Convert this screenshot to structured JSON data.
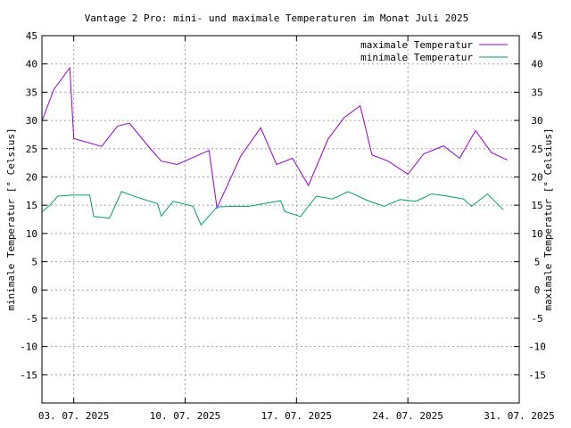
{
  "chart_data": {
    "type": "line",
    "title": "Vantage 2 Pro: mini- und maximale Temperaturen im Monat Juli 2025",
    "ylabel_left": "minimale Temperatur [° Celsius]",
    "ylabel_right": "maximale Temperatur [° Celsius]",
    "xlabel": "",
    "x_range": [
      "2025-07-01",
      "2025-07-31"
    ],
    "ylim": [
      -20,
      45
    ],
    "y_ticks": [
      -15,
      -10,
      -5,
      0,
      5,
      10,
      15,
      20,
      25,
      30,
      35,
      40,
      45
    ],
    "x_ticks": [
      {
        "date": "2025-07-03",
        "label": "03. 07. 2025"
      },
      {
        "date": "2025-07-10",
        "label": "10. 07. 2025"
      },
      {
        "date": "2025-07-17",
        "label": "17. 07. 2025"
      },
      {
        "date": "2025-07-24",
        "label": "24. 07. 2025"
      },
      {
        "date": "2025-07-31",
        "label": "31. 07. 2025"
      }
    ],
    "grid": true,
    "legend_position": "top-right",
    "series": [
      {
        "name": "maximale Temperatur",
        "color": "#9400d3",
        "points": [
          [
            "2025-07-01 00:00",
            29.9
          ],
          [
            "2025-07-01 18:00",
            35.5
          ],
          [
            "2025-07-02 18:00",
            39.3
          ],
          [
            "2025-07-03 00:00",
            26.8
          ],
          [
            "2025-07-04 18:00",
            25.4
          ],
          [
            "2025-07-05 18:00",
            29.0
          ],
          [
            "2025-07-06 12:00",
            29.5
          ],
          [
            "2025-07-07 18:00",
            25.2
          ],
          [
            "2025-07-08 12:00",
            22.8
          ],
          [
            "2025-07-09 12:00",
            22.2
          ],
          [
            "2025-07-11 12:00",
            24.7
          ],
          [
            "2025-07-12 00:00",
            14.5
          ],
          [
            "2025-07-13 12:00",
            23.7
          ],
          [
            "2025-07-14 18:00",
            28.7
          ],
          [
            "2025-07-15 18:00",
            22.2
          ],
          [
            "2025-07-16 18:00",
            23.3
          ],
          [
            "2025-07-17 18:00",
            18.5
          ],
          [
            "2025-07-19 00:00",
            26.8
          ],
          [
            "2025-07-20 00:00",
            30.5
          ],
          [
            "2025-07-21 00:00",
            32.6
          ],
          [
            "2025-07-21 18:00",
            23.9
          ],
          [
            "2025-07-22 18:00",
            22.8
          ],
          [
            "2025-07-24 00:00",
            20.5
          ],
          [
            "2025-07-25 00:00",
            24.1
          ],
          [
            "2025-07-26 06:00",
            25.5
          ],
          [
            "2025-07-27 06:00",
            23.3
          ],
          [
            "2025-07-28 06:00",
            28.2
          ],
          [
            "2025-07-29 06:00",
            24.3
          ],
          [
            "2025-07-30 06:00",
            23.0
          ]
        ]
      },
      {
        "name": "minimale Temperatur",
        "color": "#009e73",
        "points": [
          [
            "2025-07-01 00:00",
            13.8
          ],
          [
            "2025-07-01 12:00",
            15.0
          ],
          [
            "2025-07-02 00:00",
            16.6
          ],
          [
            "2025-07-03 00:00",
            16.8
          ],
          [
            "2025-07-04 00:00",
            16.8
          ],
          [
            "2025-07-04 06:00",
            13.0
          ],
          [
            "2025-07-05 06:00",
            12.7
          ],
          [
            "2025-07-06 00:00",
            17.4
          ],
          [
            "2025-07-07 00:00",
            16.4
          ],
          [
            "2025-07-08 06:00",
            15.3
          ],
          [
            "2025-07-08 12:00",
            13.1
          ],
          [
            "2025-07-09 06:00",
            15.7
          ],
          [
            "2025-07-10 12:00",
            14.8
          ],
          [
            "2025-07-11 00:00",
            11.5
          ],
          [
            "2025-07-12 00:00",
            14.7
          ],
          [
            "2025-07-13 00:00",
            14.8
          ],
          [
            "2025-07-14 00:00",
            14.8
          ],
          [
            "2025-07-16 00:00",
            15.8
          ],
          [
            "2025-07-16 06:00",
            13.9
          ],
          [
            "2025-07-17 06:00",
            13.0
          ],
          [
            "2025-07-18 06:00",
            16.6
          ],
          [
            "2025-07-19 06:00",
            16.1
          ],
          [
            "2025-07-20 06:00",
            17.4
          ],
          [
            "2025-07-21 12:00",
            15.8
          ],
          [
            "2025-07-22 12:00",
            14.8
          ],
          [
            "2025-07-23 12:00",
            16.0
          ],
          [
            "2025-07-24 12:00",
            15.7
          ],
          [
            "2025-07-25 12:00",
            17.0
          ],
          [
            "2025-07-26 12:00",
            16.6
          ],
          [
            "2025-07-27 12:00",
            16.1
          ],
          [
            "2025-07-28 00:00",
            14.8
          ],
          [
            "2025-07-29 00:00",
            17.0
          ],
          [
            "2025-07-30 00:00",
            14.2
          ]
        ]
      }
    ]
  }
}
